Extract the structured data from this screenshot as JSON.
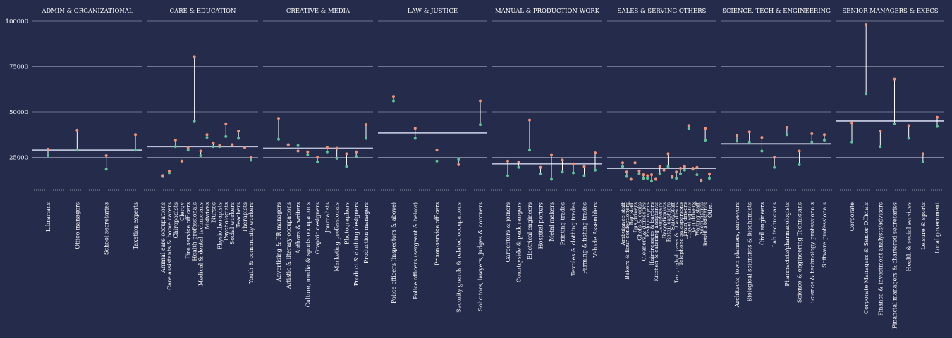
{
  "colors": {
    "background": "#252b4a",
    "grid": "#8a8fa6",
    "median": "#b9bed6",
    "stem": "#ffffff",
    "male_dot": "#f0937a",
    "female_dot": "#5fc39a",
    "text": "#ffffff"
  },
  "chart_data": {
    "type": "dumbbell",
    "ylim": [
      7000,
      100000
    ],
    "yticks": [
      {
        "value": 100000,
        "label": "100000"
      },
      {
        "value": 75000,
        "label": "75000"
      },
      {
        "value": 50000,
        "label": "50000"
      },
      {
        "value": 25000,
        "label": "25000"
      }
    ],
    "panels": [
      {
        "title": "ADMIN & ORGANIZATIONAL",
        "median": 29000,
        "jobs": [
          {
            "name": "Librarians",
            "a": 29500,
            "b": 26000
          },
          {
            "name": "Office managers",
            "a": 40000,
            "b": 29000
          },
          {
            "name": "School secretaries",
            "a": 26000,
            "b": 18500
          },
          {
            "name": "Taxation experts",
            "a": 37500,
            "b": 29000
          }
        ]
      },
      {
        "title": "CARE & EDUCATION",
        "median": 31000,
        "jobs": [
          {
            "name": "Animal care occupations",
            "a": 15000,
            "b": 14500
          },
          {
            "name": "Care assistants & home carers",
            "a": 17500,
            "b": 16500
          },
          {
            "name": "Chiropodists",
            "a": 34500,
            "b": 31000
          },
          {
            "name": "Clergy",
            "a": 23000,
            "b": 23000
          },
          {
            "name": "Fire service officers",
            "a": 30500,
            "b": 29000
          },
          {
            "name": "Health professionals",
            "a": 80500,
            "b": 45000
          },
          {
            "name": "Medical & dental technicians",
            "a": 28500,
            "b": 26000
          },
          {
            "name": "Midwives",
            "a": 37500,
            "b": 36000
          },
          {
            "name": "Nurses",
            "a": 33000,
            "b": 31000
          },
          {
            "name": "Physiotherapists",
            "a": 31500,
            "b": 31000
          },
          {
            "name": "Psychologists",
            "a": 43500,
            "b": 36500
          },
          {
            "name": "Social workers",
            "a": 32000,
            "b": 32000
          },
          {
            "name": "Teachers",
            "a": 39500,
            "b": 35500
          },
          {
            "name": "Therapists",
            "a": 30500,
            "b": 30500
          },
          {
            "name": "Youth & community workers",
            "a": 25000,
            "b": 23500
          }
        ]
      },
      {
        "title": "CREATIVE & MEDIA",
        "median": 30000,
        "jobs": [
          {
            "name": "Advertising & PR managers",
            "a": 46500,
            "b": 35000
          },
          {
            "name": "Artistic & literary occupations",
            "a": 32000,
            "b": 32000
          },
          {
            "name": "Authors & writers",
            "a": 28500,
            "b": 31500
          },
          {
            "name": "Culture, media & sports occupations",
            "a": 28000,
            "b": 26500
          },
          {
            "name": "Graphic designers",
            "a": 25000,
            "b": 22500
          },
          {
            "name": "Journalists",
            "a": 30500,
            "b": 28000
          },
          {
            "name": "Marketing professionals",
            "a": 30000,
            "b": 24500
          },
          {
            "name": "Photographers",
            "a": 27000,
            "b": 20000
          },
          {
            "name": "Product & clothing designers",
            "a": 28000,
            "b": 25500
          },
          {
            "name": "Production managers",
            "a": 43000,
            "b": 35500
          }
        ]
      },
      {
        "title": "LAW & JUSTICE",
        "median": 38500,
        "jobs": [
          {
            "name": "Police officers (inspectors & above)",
            "a": 58500,
            "b": 56000
          },
          {
            "name": "Police officers (sergeant & below)",
            "a": 41000,
            "b": 35500
          },
          {
            "name": "Prison-service officers",
            "a": 29000,
            "b": 23000
          },
          {
            "name": "Security guards & related occupations",
            "a": 21000,
            "b": 24000
          },
          {
            "name": "Solicitors, lawyers, judges & coroners",
            "a": 56000,
            "b": 43000
          }
        ]
      },
      {
        "title": "MANUAL & PRODUCTION WORK",
        "median": 21500,
        "jobs": [
          {
            "name": "Carpenters & joiners",
            "a": 23000,
            "b": 15000
          },
          {
            "name": "Countryside & park rangers",
            "a": 22500,
            "b": 19500
          },
          {
            "name": "Electrical engineers",
            "a": 45500,
            "b": 29000
          },
          {
            "name": "Hospital porters",
            "a": 19500,
            "b": 16000
          },
          {
            "name": "Metal makers",
            "a": 26500,
            "b": 13000
          },
          {
            "name": "Printing trades",
            "a": 23500,
            "b": 17000
          },
          {
            "name": "Textiles & clothing trades",
            "a": 21500,
            "b": 16500
          },
          {
            "name": "Farming & fishing trades",
            "a": 20000,
            "b": 15000
          },
          {
            "name": "Vehicle Assemblers",
            "a": 27500,
            "b": 18000
          }
        ]
      },
      {
        "title": "SALES & SERVING OTHERS",
        "median": 19000,
        "jobs": [
          {
            "name": "Ambulance staff",
            "a": 22000,
            "b": 20000
          },
          {
            "name": "Bakers & flour confectioners",
            "a": 17000,
            "b": 14500
          },
          {
            "name": "Bar staff",
            "a": 13000,
            "b": 13000
          },
          {
            "name": "Bus drivers",
            "a": 22000,
            "b": 22000
          },
          {
            "name": "Chefs & cooks",
            "a": 17500,
            "b": 16000
          },
          {
            "name": "Cleaners & domestics",
            "a": 15500,
            "b": 13500
          },
          {
            "name": "Fishmongers",
            "a": 15000,
            "b": 13500
          },
          {
            "name": "Hairdressers & barbers",
            "a": 15500,
            "b": 12000
          },
          {
            "name": "Kitchen & catering assistants",
            "a": 13000,
            "b": 13000
          },
          {
            "name": "Launderers",
            "a": 20000,
            "b": 16000
          },
          {
            "name": "Receptionists",
            "a": 18000,
            "b": 18000
          },
          {
            "name": "Retail cashiers",
            "a": 27000,
            "b": 20000
          },
          {
            "name": "Sales staff",
            "a": 14500,
            "b": 14000
          },
          {
            "name": "Taxi, cab drivers & chauffeurs",
            "a": 17000,
            "b": 13500
          },
          {
            "name": "Telephone salespersons",
            "a": 19000,
            "b": 16000
          },
          {
            "name": "Train drivers",
            "a": 20000,
            "b": 18000
          },
          {
            "name": "Travel agents",
            "a": 42500,
            "b": 41000
          },
          {
            "name": "Van drivers",
            "a": 19000,
            "b": 18500
          },
          {
            "name": "Waiting staff",
            "a": 19500,
            "b": 15500
          },
          {
            "name": "Accountants",
            "a": 12500,
            "b": 12000
          },
          {
            "name": "Retail assistants",
            "a": 41000,
            "b": 34500
          },
          {
            "name": "Other",
            "a": 16000,
            "b": 13500
          }
        ]
      },
      {
        "title": "SCIENCE, TECH & ENGINEERING",
        "median": 32500,
        "jobs": [
          {
            "name": "Architects, town planners, surveyors",
            "a": 37000,
            "b": 34000
          },
          {
            "name": "Biological scientists & biochemists",
            "a": 39000,
            "b": 33500
          },
          {
            "name": "Civil engineers",
            "a": 36000,
            "b": 28500
          },
          {
            "name": "Lab technicians",
            "a": 25000,
            "b": 19500
          },
          {
            "name": "Pharmacists/pharmacologists",
            "a": 41500,
            "b": 37500
          },
          {
            "name": "Science & engineering Technicians",
            "a": 28500,
            "b": 21000
          },
          {
            "name": "Science & technology professionals",
            "a": 38000,
            "b": 33500
          },
          {
            "name": "Software professionals",
            "a": 37500,
            "b": 34500
          }
        ]
      },
      {
        "title": "SENIOR MANAGERS & EXECS",
        "median": 45000,
        "jobs": [
          {
            "name": "Corporate",
            "a": 44000,
            "b": 33500
          },
          {
            "name": "Corporate Managers & Senior Officials",
            "a": 98000,
            "b": 60000
          },
          {
            "name": "Finance & investment analysts/advisers",
            "a": 39500,
            "b": 31000
          },
          {
            "name": "Financial managers & chartered secretaries",
            "a": 68000,
            "b": 43500
          },
          {
            "name": "Health & social services",
            "a": 42500,
            "b": 35500
          },
          {
            "name": "Leisure & sports",
            "a": 27000,
            "b": 22500
          },
          {
            "name": "Local government",
            "a": 47000,
            "b": 42000
          }
        ]
      }
    ]
  }
}
